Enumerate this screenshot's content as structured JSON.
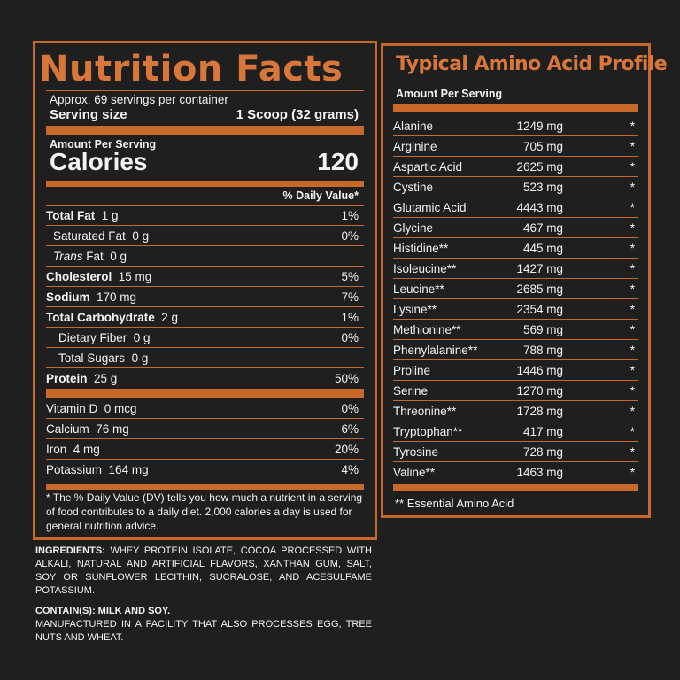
{
  "nutrition": {
    "title": "Nutrition Facts",
    "servings_per_container": "Approx. 69 servings per container",
    "serving_size_label": "Serving size",
    "serving_size_value": "1 Scoop (32 grams)",
    "amount_per_serving": "Amount Per Serving",
    "calories_label": "Calories",
    "calories_value": "120",
    "daily_value_header": "% Daily Value*",
    "rows": [
      {
        "name": "Total Fat",
        "amount": "1 g",
        "dv": "1%",
        "bold": true,
        "indent": 0
      },
      {
        "name": "Saturated Fat",
        "amount": "0 g",
        "dv": "0%",
        "bold": false,
        "indent": 1
      },
      {
        "name": "Trans",
        "name_suffix": " Fat",
        "amount": "0 g",
        "dv": "",
        "bold": false,
        "indent": 1,
        "italic": true
      },
      {
        "name": "Cholesterol",
        "amount": "15 mg",
        "dv": "5%",
        "bold": true,
        "indent": 0
      },
      {
        "name": "Sodium",
        "amount": "170 mg",
        "dv": "7%",
        "bold": true,
        "indent": 0
      },
      {
        "name": "Total Carbohydrate",
        "amount": "2 g",
        "dv": "1%",
        "bold": true,
        "indent": 0
      },
      {
        "name": "Dietary Fiber",
        "amount": "0 g",
        "dv": "0%",
        "bold": false,
        "indent": 2
      },
      {
        "name": "Total Sugars",
        "amount": "0 g",
        "dv": "",
        "bold": false,
        "indent": 2
      },
      {
        "name": "Protein",
        "amount": "25 g",
        "dv": "50%",
        "bold": true,
        "indent": 0
      }
    ],
    "vitamins": [
      {
        "name": "Vitamin D",
        "amount": "0 mcg",
        "dv": "0%"
      },
      {
        "name": "Calcium",
        "amount": "76 mg",
        "dv": "6%"
      },
      {
        "name": "Iron",
        "amount": "4 mg",
        "dv": "20%"
      },
      {
        "name": "Potassium",
        "amount": "164 mg",
        "dv": "4%"
      }
    ],
    "footnote": "* The % Daily Value (DV) tells you how much a nutrient in a serving of food contributes to a daily diet. 2,000 calories a day is used for general nutrition advice."
  },
  "amino": {
    "title": "Typical Amino Acid Profile",
    "amount_per_serving": "Amount Per Serving",
    "rows": [
      {
        "name": "Alanine",
        "amount": "1249 mg",
        "mark": "*"
      },
      {
        "name": "Arginine",
        "amount": "705 mg",
        "mark": "*"
      },
      {
        "name": "Aspartic Acid",
        "amount": "2625 mg",
        "mark": "*"
      },
      {
        "name": "Cystine",
        "amount": "523 mg",
        "mark": "*"
      },
      {
        "name": "Glutamic Acid",
        "amount": "4443 mg",
        "mark": "*"
      },
      {
        "name": "Glycine",
        "amount": "467 mg",
        "mark": "*"
      },
      {
        "name": "Histidine**",
        "amount": "445 mg",
        "mark": "*"
      },
      {
        "name": "Isoleucine**",
        "amount": "1427 mg",
        "mark": "*"
      },
      {
        "name": "Leucine**",
        "amount": "2685 mg",
        "mark": "*"
      },
      {
        "name": "Lysine**",
        "amount": "2354 mg",
        "mark": "*"
      },
      {
        "name": "Methionine**",
        "amount": "569 mg",
        "mark": "*"
      },
      {
        "name": "Phenylalanine**",
        "amount": "788 mg",
        "mark": "*"
      },
      {
        "name": "Proline",
        "amount": "1446 mg",
        "mark": "*"
      },
      {
        "name": "Serine",
        "amount": "1270 mg",
        "mark": "*"
      },
      {
        "name": "Threonine**",
        "amount": "1728 mg",
        "mark": "*"
      },
      {
        "name": "Tryptophan**",
        "amount": "417 mg",
        "mark": "*"
      },
      {
        "name": "Tyrosine",
        "amount": "728 mg",
        "mark": "*"
      },
      {
        "name": "Valine**",
        "amount": "1463 mg",
        "mark": "*"
      }
    ],
    "footnote": "** Essential Amino Acid"
  },
  "ingredients": {
    "label": "INGREDIENTS:",
    "text": "WHEY PROTEIN ISOLATE, COCOA PROCESSED WITH ALKALI, NATURAL AND ARTIFICIAL FLAVORS, XANTHAN GUM, SALT, SOY OR SUNFLOWER LECITHIN, SUCRALOSE, AND ACESULFAME POTASSIUM.",
    "contains": "CONTAIN(S): MILK AND SOY.",
    "facility": "MANUFACTURED IN A FACILITY THAT ALSO PROCESSES EGG, TREE NUTS AND WHEAT."
  },
  "colors": {
    "accent": "#c8692b",
    "title": "#d9773a",
    "background": "#1f1f1f",
    "text": "#f2f2f2"
  }
}
